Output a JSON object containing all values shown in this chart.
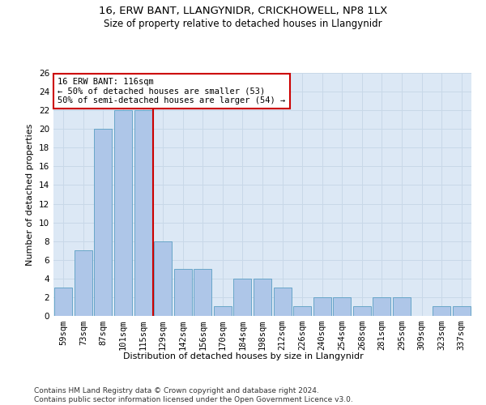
{
  "title1": "16, ERW BANT, LLANGYNIDR, CRICKHOWELL, NP8 1LX",
  "title2": "Size of property relative to detached houses in Llangynidr",
  "xlabel": "Distribution of detached houses by size in Llangynidr",
  "ylabel": "Number of detached properties",
  "categories": [
    "59sqm",
    "73sqm",
    "87sqm",
    "101sqm",
    "115sqm",
    "129sqm",
    "142sqm",
    "156sqm",
    "170sqm",
    "184sqm",
    "198sqm",
    "212sqm",
    "226sqm",
    "240sqm",
    "254sqm",
    "268sqm",
    "281sqm",
    "295sqm",
    "309sqm",
    "323sqm",
    "337sqm"
  ],
  "values": [
    3,
    7,
    20,
    22,
    22,
    8,
    5,
    5,
    1,
    4,
    4,
    3,
    1,
    2,
    2,
    1,
    2,
    2,
    0,
    1,
    1
  ],
  "bar_color": "#aec6e8",
  "bar_edge_color": "#5a9fc2",
  "red_line_x": 4.5,
  "red_line_color": "#cc0000",
  "annotation_text": "16 ERW BANT: 116sqm\n← 50% of detached houses are smaller (53)\n50% of semi-detached houses are larger (54) →",
  "annotation_box_color": "#ffffff",
  "annotation_box_edge_color": "#cc0000",
  "ylim": [
    0,
    26
  ],
  "yticks": [
    0,
    2,
    4,
    6,
    8,
    10,
    12,
    14,
    16,
    18,
    20,
    22,
    24,
    26
  ],
  "grid_color": "#c8d8e8",
  "bg_color": "#dce8f5",
  "footer_text": "Contains HM Land Registry data © Crown copyright and database right 2024.\nContains public sector information licensed under the Open Government Licence v3.0.",
  "title1_fontsize": 9.5,
  "title2_fontsize": 8.5,
  "xlabel_fontsize": 8,
  "ylabel_fontsize": 8,
  "tick_fontsize": 7.5,
  "annotation_fontsize": 7.5,
  "footer_fontsize": 6.5
}
